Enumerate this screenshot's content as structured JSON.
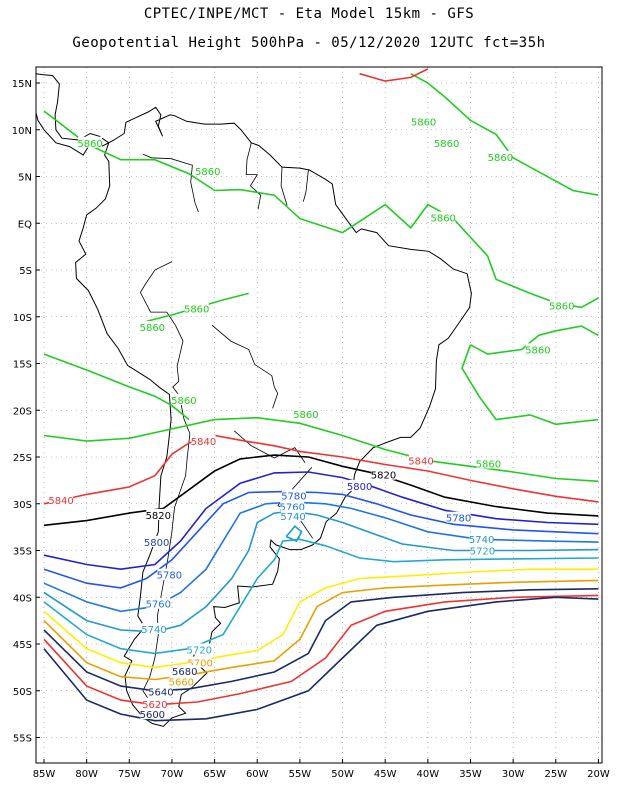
{
  "title_line1": "CPTEC/INPE/MCT -  Eta Model 15km - GFS",
  "title_line2": "Geopotential Height 500hPa - 05/12/2020 12UTC fct=35h",
  "lat_labels": [
    "15N",
    "10N",
    "5N",
    "EQ",
    "5S",
    "10S",
    "15S",
    "20S",
    "25S",
    "30S",
    "35S",
    "40S",
    "45S",
    "50S",
    "55S"
  ],
  "lon_labels": [
    "85W",
    "80W",
    "75W",
    "70W",
    "65W",
    "60W",
    "55W",
    "50W",
    "45W",
    "40W",
    "35W",
    "30W",
    "25W",
    "20W"
  ],
  "contour_labels": [
    {
      "text": "5860",
      "lon": -40.5,
      "lat": 10.8,
      "color": "#22cc22"
    },
    {
      "text": "5860",
      "lon": -79.6,
      "lat": 8.5,
      "color": "#22cc22"
    },
    {
      "text": "5860",
      "lon": -65.8,
      "lat": 5.5,
      "color": "#22cc22"
    },
    {
      "text": "5860",
      "lon": -37.8,
      "lat": 8.5,
      "color": "#22cc22"
    },
    {
      "text": "5860",
      "lon": -31.5,
      "lat": 7.0,
      "color": "#22cc22"
    },
    {
      "text": "5860",
      "lon": -38.2,
      "lat": 0.5,
      "color": "#22cc22"
    },
    {
      "text": "5860",
      "lon": -67.1,
      "lat": -9.2,
      "color": "#22cc22"
    },
    {
      "text": "5860",
      "lon": -72.3,
      "lat": -11.2,
      "color": "#22cc22"
    },
    {
      "text": "5860",
      "lon": -24.3,
      "lat": -8.9,
      "color": "#22cc22"
    },
    {
      "text": "5860",
      "lon": -27.1,
      "lat": -13.6,
      "color": "#22cc22"
    },
    {
      "text": "5860",
      "lon": -68.6,
      "lat": -19.0,
      "color": "#22cc22"
    },
    {
      "text": "5860",
      "lon": -54.3,
      "lat": -20.5,
      "color": "#22cc22"
    },
    {
      "text": "5860",
      "lon": -32.9,
      "lat": -25.8,
      "color": "#22cc22"
    },
    {
      "text": "5840",
      "lon": -66.3,
      "lat": -23.4,
      "color": "#ee3333"
    },
    {
      "text": "5840",
      "lon": -83.0,
      "lat": -29.7,
      "color": "#ee3333"
    },
    {
      "text": "5840",
      "lon": -40.8,
      "lat": -25.5,
      "color": "#ee3333"
    },
    {
      "text": "5820",
      "lon": -45.2,
      "lat": -27.0,
      "color": "#000000"
    },
    {
      "text": "5820",
      "lon": -71.6,
      "lat": -31.3,
      "color": "#000000"
    },
    {
      "text": "5800",
      "lon": -48.0,
      "lat": -28.2,
      "color": "#2222cc"
    },
    {
      "text": "5780",
      "lon": -55.7,
      "lat": -29.2,
      "color": "#2255ee"
    },
    {
      "text": "5780",
      "lon": -36.4,
      "lat": -31.6,
      "color": "#2255ee"
    },
    {
      "text": "5760",
      "lon": -55.9,
      "lat": -30.4,
      "color": "#2277dd"
    },
    {
      "text": "5740",
      "lon": -55.8,
      "lat": -31.4,
      "color": "#2299cc"
    },
    {
      "text": "5740",
      "lon": -33.7,
      "lat": -33.9,
      "color": "#2299cc"
    },
    {
      "text": "5720",
      "lon": -33.6,
      "lat": -35.1,
      "color": "#22aacc"
    },
    {
      "text": "5800",
      "lon": -71.8,
      "lat": -34.2,
      "color": "#2244aa"
    },
    {
      "text": "5780",
      "lon": -70.3,
      "lat": -37.7,
      "color": "#2255ee"
    },
    {
      "text": "5760",
      "lon": -71.6,
      "lat": -40.8,
      "color": "#2277dd"
    },
    {
      "text": "5740",
      "lon": -72.1,
      "lat": -43.5,
      "color": "#2299cc"
    },
    {
      "text": "5720",
      "lon": -66.8,
      "lat": -45.7,
      "color": "#22aacc"
    },
    {
      "text": "5700",
      "lon": -66.7,
      "lat": -47.1,
      "color": "#e8a000"
    },
    {
      "text": "5680",
      "lon": -68.5,
      "lat": -48.0,
      "color": "#1a2a66"
    },
    {
      "text": "5660",
      "lon": -68.9,
      "lat": -49.1,
      "color": "#e8a000"
    },
    {
      "text": "5640",
      "lon": -71.3,
      "lat": -50.2,
      "color": "#1a2a66"
    },
    {
      "text": "5620",
      "lon": -72.0,
      "lat": -51.5,
      "color": "#ee3333"
    },
    {
      "text": "5600",
      "lon": -72.3,
      "lat": -52.6,
      "color": "#1a2a66"
    }
  ]
}
